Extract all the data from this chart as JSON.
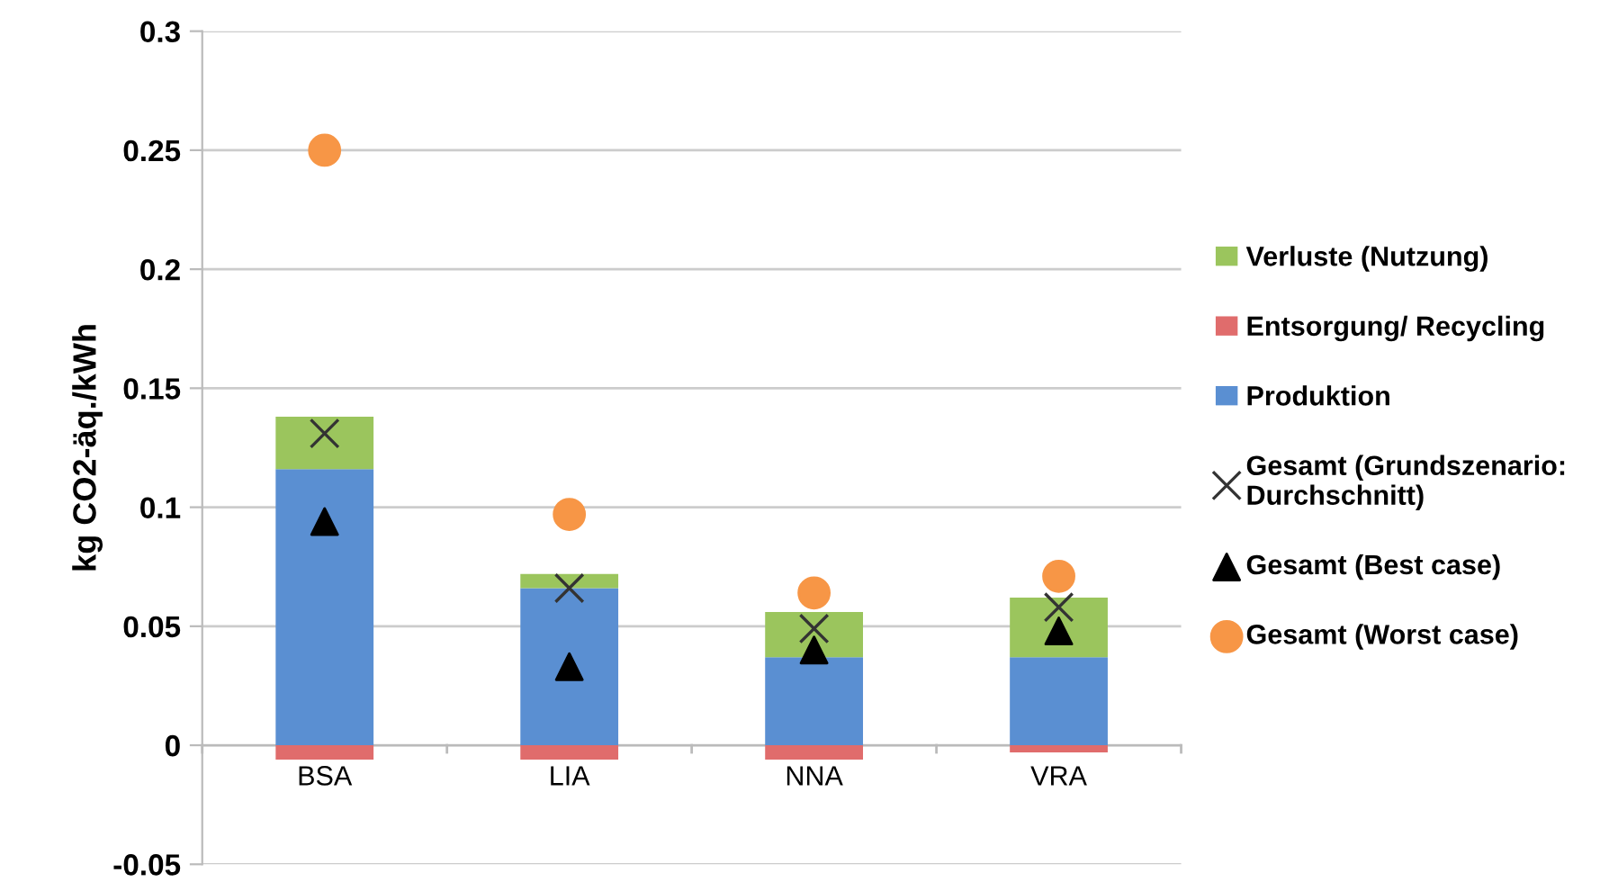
{
  "chart_data": {
    "type": "bar",
    "stacked": true,
    "ylabel": "kg CO2-äq./kWh",
    "categories": [
      "BSA",
      "LIA",
      "NNA",
      "VRA"
    ],
    "series": [
      {
        "name": "Entsorgung/ Recycling",
        "color": "#e06c6c",
        "values": [
          -0.006,
          -0.006,
          -0.006,
          -0.003
        ]
      },
      {
        "name": "Produktion",
        "color": "#5a8fd2",
        "values": [
          0.116,
          0.066,
          0.037,
          0.037
        ]
      },
      {
        "name": "Verluste (Nutzung)",
        "color": "#9bc55d",
        "values": [
          0.022,
          0.006,
          0.019,
          0.025
        ]
      },
      {
        "name": "Gesamt (Grundszenario:\nDurchschnitt)",
        "type": "scatter",
        "marker": "cross",
        "color": "#333333",
        "values": [
          0.131,
          0.066,
          0.049,
          0.058
        ]
      },
      {
        "name": "Gesamt (Best case)",
        "type": "scatter",
        "marker": "triangle",
        "color": "#000000",
        "values": [
          0.094,
          0.033,
          0.04,
          0.048
        ]
      },
      {
        "name": "Gesamt (Worst case)",
        "type": "scatter",
        "marker": "circle",
        "color": "#f79646",
        "values": [
          0.25,
          0.097,
          0.064,
          0.071
        ]
      }
    ],
    "ylim": [
      -0.05,
      0.3
    ],
    "yticks": [
      -0.05,
      0,
      0.05,
      0.1,
      0.15,
      0.2,
      0.25,
      0.3
    ],
    "grid": "y",
    "legend": "right"
  }
}
